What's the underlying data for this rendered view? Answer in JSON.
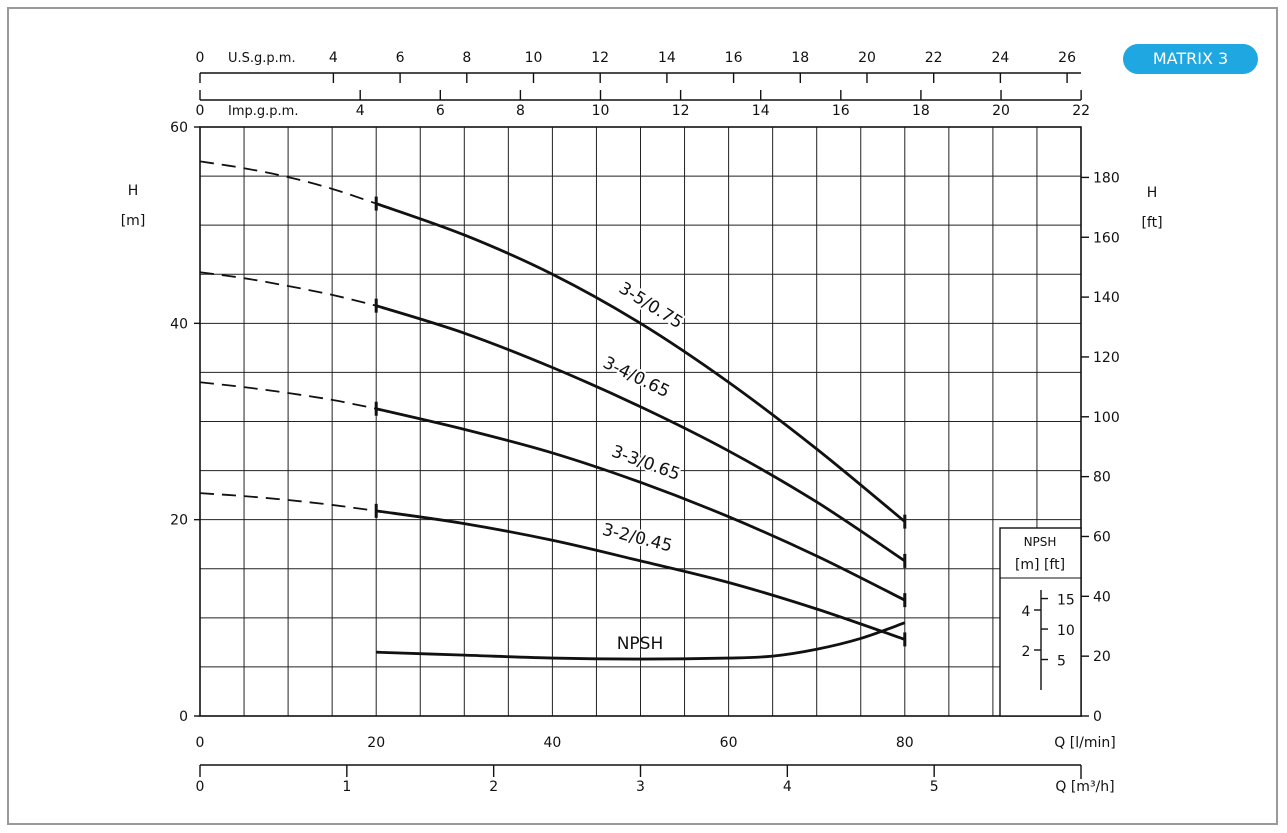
{
  "badge": {
    "label": "MATRIX 3"
  },
  "chart_data": {
    "type": "line",
    "x_unit_label": "Q [l/min]",
    "x_range": [
      0,
      100
    ],
    "x_ticks": [
      0,
      20,
      40,
      60,
      80
    ],
    "y_left_label": [
      "H",
      "[m]"
    ],
    "y_left_range": [
      0,
      60
    ],
    "y_left_ticks": [
      0,
      20,
      40,
      60
    ],
    "y_right_label": [
      "H",
      "[ft]"
    ],
    "y_right_ticks": [
      0,
      20,
      40,
      60,
      80,
      100,
      120,
      140,
      160,
      180
    ],
    "m3h_label": "Q [m³/h]",
    "m3h_ticks": [
      0,
      1,
      2,
      3,
      4,
      5
    ],
    "imp_label": "Imp.g.p.m.",
    "imp_ticks": [
      0,
      4,
      6,
      8,
      10,
      12,
      14,
      16,
      18,
      20,
      22
    ],
    "usg_label": "U.S.g.p.m.",
    "usg_ticks": [
      0,
      4,
      6,
      8,
      10,
      12,
      14,
      16,
      18,
      20,
      22,
      24,
      26
    ],
    "grid": true,
    "series": [
      {
        "name": "3-5/0.75",
        "dashed_x": [
          0,
          5,
          10,
          15,
          20
        ],
        "dashed_y": [
          56.5,
          55.8,
          54.9,
          53.7,
          52.2
        ],
        "x": [
          20,
          30,
          40,
          50,
          60,
          70,
          80
        ],
        "y": [
          52.2,
          49.0,
          45.0,
          40.0,
          34.0,
          27.2,
          19.8
        ]
      },
      {
        "name": "3-4/0.65",
        "dashed_x": [
          0,
          5,
          10,
          15,
          20
        ],
        "dashed_y": [
          45.2,
          44.6,
          43.8,
          42.9,
          41.8
        ],
        "x": [
          20,
          30,
          40,
          50,
          60,
          70,
          80
        ],
        "y": [
          41.8,
          39.0,
          35.5,
          31.5,
          27.0,
          21.8,
          15.8
        ]
      },
      {
        "name": "3-3/0.65",
        "dashed_x": [
          0,
          5,
          10,
          15,
          20
        ],
        "dashed_y": [
          34.0,
          33.5,
          32.9,
          32.2,
          31.3
        ],
        "x": [
          20,
          30,
          40,
          50,
          60,
          70,
          80
        ],
        "y": [
          31.3,
          29.2,
          26.8,
          23.8,
          20.3,
          16.3,
          11.8
        ]
      },
      {
        "name": "3-2/0.45",
        "dashed_x": [
          0,
          5,
          10,
          15,
          20
        ],
        "dashed_y": [
          22.7,
          22.4,
          22.0,
          21.5,
          20.9
        ],
        "x": [
          20,
          30,
          40,
          50,
          60,
          70,
          80
        ],
        "y": [
          20.9,
          19.6,
          17.9,
          15.8,
          13.6,
          10.9,
          7.8
        ]
      },
      {
        "name": "NPSH",
        "x": [
          20,
          30,
          40,
          50,
          60,
          65,
          70,
          75,
          80
        ],
        "y": [
          6.5,
          6.2,
          5.9,
          5.8,
          5.9,
          6.1,
          6.8,
          7.9,
          9.5
        ]
      }
    ],
    "npsh_inset": {
      "title": "NPSH",
      "units": "[m]  [ft]",
      "m_ticks": [
        2,
        4
      ],
      "ft_ticks": [
        5,
        10,
        15
      ]
    }
  }
}
